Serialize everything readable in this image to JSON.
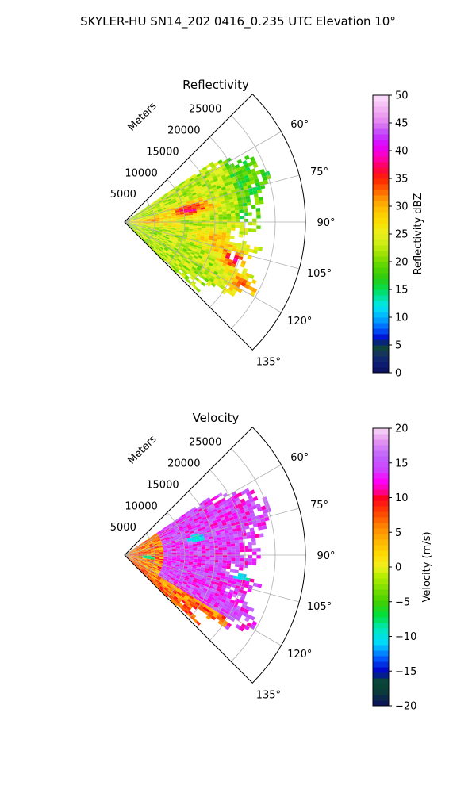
{
  "figure_title": "SKYLER-HU  SN14_202  0416_0.235 UTC Elevation 10°",
  "chart_data": [
    {
      "type": "heatmap",
      "projection": "polar-sector",
      "title": "Reflectivity",
      "range_label": "Meters",
      "range_ticks": [
        5000,
        10000,
        15000,
        20000,
        25000
      ],
      "range_limit": [
        0,
        30000
      ],
      "azimuth_ticks": [
        "60°",
        "75°",
        "90°",
        "105°",
        "120°",
        "135°"
      ],
      "azimuth_range_deg": [
        45,
        135
      ],
      "colorbar": {
        "label": "Reflectivity dBZ",
        "range": [
          0,
          50
        ],
        "ticks": [
          "0",
          "5",
          "10",
          "15",
          "20",
          "25",
          "30",
          "35",
          "40",
          "45",
          "50"
        ]
      },
      "dominant_values": "15–30 dBZ widespread; cores 35–40 dBZ near 78° at ~11000 m, 108° at ~19000 m, 118° at ~22000 m"
    },
    {
      "type": "heatmap",
      "projection": "polar-sector",
      "title": "Velocity",
      "range_label": "Meters",
      "range_ticks": [
        5000,
        10000,
        15000,
        20000,
        25000
      ],
      "range_limit": [
        0,
        30000
      ],
      "azimuth_ticks": [
        "60°",
        "75°",
        "90°",
        "105°",
        "120°",
        "135°"
      ],
      "azimuth_range_deg": [
        45,
        135
      ],
      "colorbar": {
        "label": "Velocity (m/s)",
        "range": [
          -20,
          20
        ],
        "ticks": [
          "−20",
          "−15",
          "−10",
          "−5",
          "0",
          "5",
          "10",
          "15",
          "20"
        ]
      },
      "dominant_values": "mostly 10–17 m/s; 0–8 m/s near the radar and at 125–135°; −12 m/s patches near 76° and 100°"
    }
  ],
  "colors": {
    "grid": "#b0b0b0",
    "axis": "#000000"
  }
}
